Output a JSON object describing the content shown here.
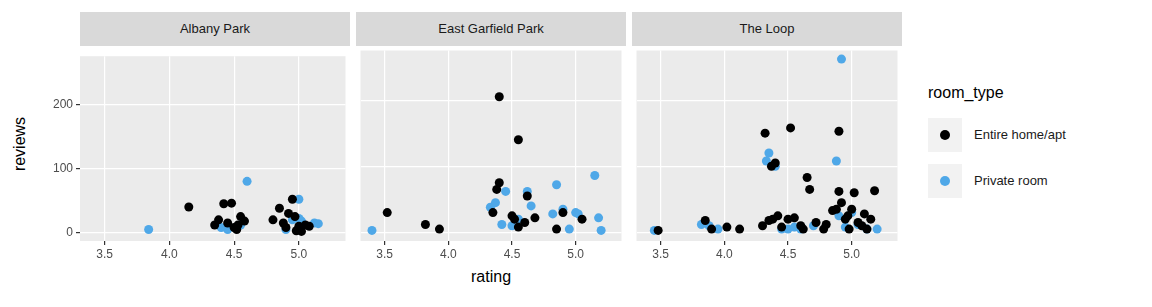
{
  "chart_data": {
    "type": "scatter",
    "x_label": "rating",
    "y_label": "reviews",
    "legend": "right",
    "legend_title": "room_type",
    "grid": true,
    "xlim": [
      3.31,
      5.36
    ],
    "xticks": [
      3.5,
      {
        "value": 4,
        "label": "4.0"
      },
      4.5,
      {
        "value": 5,
        "label": "5.0"
      }
    ],
    "ylim": [
      -13,
      275
    ],
    "yticks": [
      0,
      100,
      200
    ],
    "panels": [
      {
        "title": "Albany Park",
        "series": [
          {
            "name": "Entire home/apt",
            "color": "#000000",
            "x": [
              4.15,
              4.35,
              4.38,
              4.42,
              4.48,
              4.45,
              4.5,
              4.53,
              4.55,
              4.58,
              4.85,
              4.88,
              4.9,
              4.92,
              4.95,
              4.97,
              4.98,
              5.0,
              5.02,
              5.05,
              5.08,
              4.8,
              4.52
            ],
            "values": [
              40,
              12,
              20,
              45,
              46,
              15,
              8,
              12,
              25,
              18,
              38,
              15,
              8,
              30,
              52,
              25,
              3,
              10,
              2,
              12,
              10,
              20,
              5
            ]
          },
          {
            "name": "Private room",
            "color": "#4FA8E8",
            "x": [
              3.84,
              4.6,
              5.0,
              4.95,
              5.0,
              5.12,
              5.15,
              4.45,
              4.55,
              4.9,
              4.4,
              5.02
            ],
            "values": [
              5,
              80,
              52,
              20,
              22,
              15,
              14,
              5,
              12,
              5,
              8,
              18
            ]
          }
        ]
      },
      {
        "title": "East Garfield Park",
        "series": [
          {
            "name": "Entire home/apt",
            "color": "#000000",
            "x": [
              3.52,
              3.82,
              3.93,
              4.35,
              4.38,
              4.4,
              4.4,
              4.5,
              4.52,
              4.55,
              4.55,
              4.6,
              4.62,
              4.68,
              4.85,
              4.9,
              5.05
            ],
            "values": [
              30,
              12,
              5,
              30,
              65,
              75,
              205,
              25,
              20,
              140,
              8,
              15,
              55,
              22,
              5,
              30,
              20
            ]
          },
          {
            "name": "Private room",
            "color": "#4FA8E8",
            "x": [
              3.4,
              4.33,
              4.37,
              4.45,
              4.42,
              4.5,
              4.55,
              4.62,
              4.65,
              4.82,
              4.85,
              4.9,
              4.95,
              5.0,
              5.02,
              5.15,
              5.18,
              5.2
            ],
            "values": [
              3,
              38,
              45,
              62,
              12,
              10,
              20,
              62,
              40,
              28,
              72,
              35,
              5,
              30,
              28,
              86,
              22,
              3
            ]
          }
        ]
      },
      {
        "title": "The Loop",
        "series": [
          {
            "name": "Entire home/apt",
            "color": "#000000",
            "x": [
              3.48,
              3.85,
              3.9,
              4.02,
              4.12,
              4.3,
              4.32,
              4.35,
              4.37,
              4.4,
              4.38,
              4.42,
              4.45,
              4.5,
              4.52,
              4.55,
              4.6,
              4.62,
              4.65,
              4.67,
              4.72,
              4.78,
              4.85,
              4.88,
              4.9,
              4.9,
              4.92,
              4.95,
              4.97,
              5.0,
              5.02,
              5.05,
              5.08,
              5.1,
              5.15,
              5.18,
              4.8,
              4.98,
              5.12
            ],
            "values": [
              3,
              18,
              5,
              8,
              5,
              10,
              150,
              18,
              100,
              105,
              20,
              25,
              8,
              20,
              158,
              22,
              10,
              5,
              83,
              65,
              15,
              5,
              33,
              35,
              62,
              153,
              45,
              20,
              25,
              35,
              60,
              15,
              10,
              28,
              20,
              63,
              12,
              5,
              5
            ]
          },
          {
            "name": "Private room",
            "color": "#4FA8E8",
            "x": [
              3.45,
              3.82,
              3.88,
              3.95,
              4.33,
              4.35,
              4.4,
              4.45,
              4.5,
              4.55,
              4.6,
              4.7,
              4.88,
              4.92,
              4.95,
              5.0,
              5.05,
              5.12,
              5.2,
              4.9
            ],
            "values": [
              3,
              12,
              10,
              5,
              108,
              120,
              100,
              5,
              5,
              8,
              5,
              10,
              108,
              262,
              8,
              30,
              12,
              5,
              5,
              25
            ]
          }
        ]
      }
    ]
  }
}
